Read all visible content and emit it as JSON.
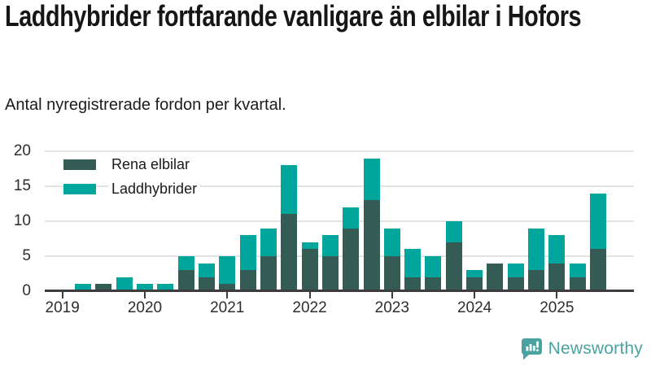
{
  "title": "Laddhybrider fortfarande vanligare än elbilar i Hofors",
  "subtitle": "Antal nyregistrerade fordon per kvartal.",
  "legend": {
    "items": [
      {
        "label": "Rena elbilar",
        "color": "#345c55"
      },
      {
        "label": "Laddhybrider",
        "color": "#00a69c"
      }
    ]
  },
  "chart_data": {
    "type": "bar",
    "stacked": true,
    "title": "Laddhybrider fortfarande vanligare än elbilar i Hofors",
    "subtitle": "Antal nyregistrerade fordon per kvartal.",
    "xlabel": "",
    "ylabel": "",
    "x": [
      "2019 Q1",
      "2019 Q2",
      "2019 Q3",
      "2019 Q4",
      "2020 Q1",
      "2020 Q2",
      "2020 Q3",
      "2020 Q4",
      "2021 Q1",
      "2021 Q2",
      "2021 Q3",
      "2021 Q4",
      "2022 Q1",
      "2022 Q2",
      "2022 Q3",
      "2022 Q4",
      "2023 Q1",
      "2023 Q2",
      "2023 Q3",
      "2023 Q4",
      "2024 Q1",
      "2024 Q2",
      "2024 Q3",
      "2024 Q4",
      "2025 Q1",
      "2025 Q2",
      "2025 Q3"
    ],
    "series": [
      {
        "name": "Rena elbilar",
        "color": "#345c55",
        "values": [
          0,
          0,
          1,
          0,
          0,
          0,
          3,
          2,
          1,
          3,
          5,
          11,
          6,
          5,
          9,
          13,
          5,
          2,
          2,
          7,
          2,
          4,
          2,
          3,
          4,
          2,
          6
        ]
      },
      {
        "name": "Laddhybrider",
        "color": "#00a69c",
        "values": [
          0,
          1,
          0,
          2,
          1,
          1,
          2,
          2,
          4,
          5,
          4,
          7,
          1,
          3,
          3,
          6,
          4,
          4,
          3,
          3,
          1,
          0,
          2,
          6,
          4,
          2,
          8
        ]
      }
    ],
    "xticks": {
      "labels": [
        "2019",
        "2020",
        "2021",
        "2022",
        "2023",
        "2024",
        "2025"
      ],
      "quarter_index": [
        0,
        4,
        8,
        12,
        16,
        20,
        24
      ]
    },
    "yticks": [
      0,
      5,
      10,
      15,
      20
    ],
    "ylim": [
      0,
      20
    ],
    "grid": "horizontal",
    "legend_position": "inside-top-left"
  },
  "colors": {
    "electric": "#345c55",
    "hybrid": "#00a69c",
    "grid": "#e3e3e3",
    "axis": "#3d3d3d",
    "text": "#1a1a1a",
    "brand": "#4aa3a1"
  },
  "branding": {
    "label": "Newsworthy"
  }
}
